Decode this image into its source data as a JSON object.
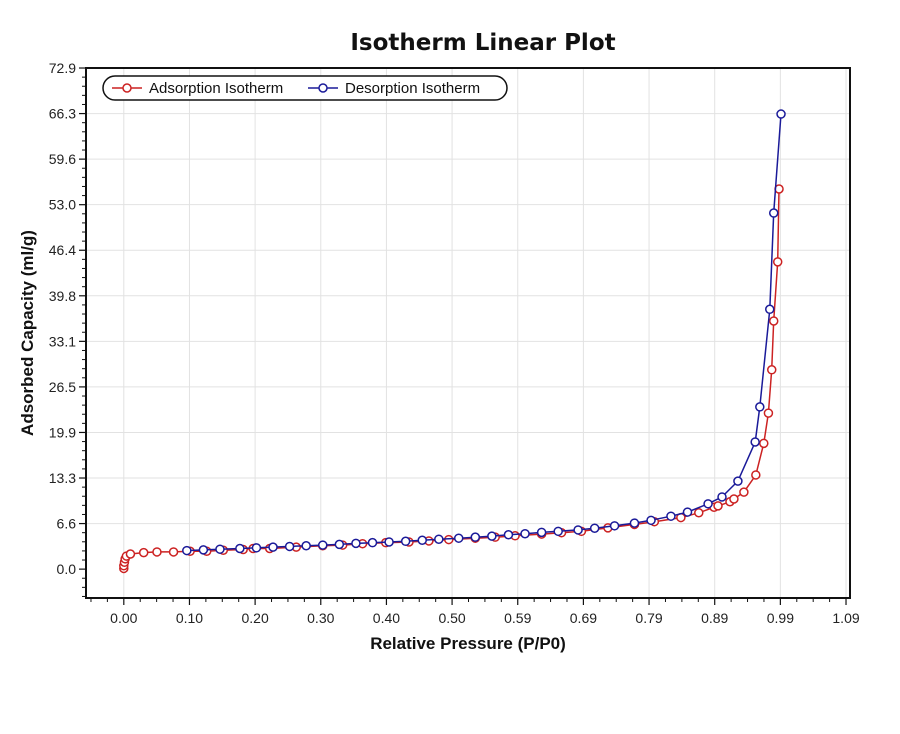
{
  "chart_data": {
    "type": "line",
    "title": "Isotherm Linear Plot",
    "xlabel": "Relative Pressure (P/P0)",
    "ylabel": "Adsorbed Capacity (ml/g)",
    "xlim": [
      -0.057,
      1.095
    ],
    "ylim": [
      -4.2,
      72.9
    ],
    "grid": true,
    "legend_position": "top-left",
    "x_ticks": [
      "0.00",
      "0.10",
      "0.20",
      "0.30",
      "0.40",
      "0.50",
      "0.59",
      "0.69",
      "0.79",
      "0.89",
      "0.99",
      "1.09"
    ],
    "x_tick_step": 0.099,
    "y_ticks": [
      "0.0",
      "6.6",
      "13.3",
      "19.9",
      "26.5",
      "33.1",
      "39.8",
      "46.4",
      "53.0",
      "59.6",
      "66.3",
      "72.9"
    ],
    "y_tick_step": 6.627,
    "series": [
      {
        "name": "Adsorption Isotherm",
        "color": "#cc2222",
        "x": [
          0,
          0,
          0.001,
          0.002,
          0.004,
          0.01,
          0.03,
          0.05,
          0.075,
          0.1,
          0.125,
          0.15,
          0.18,
          0.195,
          0.22,
          0.26,
          0.3,
          0.33,
          0.36,
          0.395,
          0.43,
          0.46,
          0.49,
          0.53,
          0.56,
          0.59,
          0.63,
          0.66,
          0.69,
          0.73,
          0.77,
          0.8,
          0.84,
          0.867,
          0.89,
          0.896,
          0.914,
          0.92,
          0.935,
          0.953,
          0.965,
          0.972,
          0.977,
          0.98,
          0.986,
          0.988
        ],
        "y": [
          0.1,
          0.5,
          1.0,
          1.5,
          1.9,
          2.2,
          2.4,
          2.5,
          2.5,
          2.6,
          2.6,
          2.75,
          2.85,
          3.0,
          3.0,
          3.2,
          3.4,
          3.5,
          3.7,
          3.85,
          3.95,
          4.1,
          4.3,
          4.5,
          4.65,
          4.85,
          5.1,
          5.3,
          5.5,
          6.0,
          6.5,
          6.9,
          7.5,
          8.2,
          9.0,
          9.2,
          9.8,
          10.2,
          11.2,
          13.7,
          18.3,
          22.7,
          29.0,
          36.1,
          44.7,
          55.3
        ]
      },
      {
        "name": "Desorption Isotherm",
        "color": "#1a1a99",
        "x": [
          0.095,
          0.12,
          0.145,
          0.175,
          0.2,
          0.225,
          0.25,
          0.275,
          0.3,
          0.325,
          0.35,
          0.375,
          0.4,
          0.425,
          0.45,
          0.475,
          0.505,
          0.53,
          0.555,
          0.58,
          0.605,
          0.63,
          0.655,
          0.685,
          0.71,
          0.74,
          0.77,
          0.795,
          0.825,
          0.85,
          0.881,
          0.902,
          0.926,
          0.952,
          0.959,
          0.974,
          0.98,
          0.991
        ],
        "y": [
          2.7,
          2.8,
          2.9,
          3.0,
          3.1,
          3.2,
          3.3,
          3.4,
          3.5,
          3.6,
          3.75,
          3.85,
          3.95,
          4.05,
          4.2,
          4.35,
          4.5,
          4.65,
          4.8,
          5.0,
          5.15,
          5.35,
          5.5,
          5.7,
          5.95,
          6.3,
          6.7,
          7.1,
          7.7,
          8.3,
          9.5,
          10.5,
          12.8,
          18.5,
          23.6,
          37.8,
          51.8,
          66.2
        ]
      }
    ]
  }
}
